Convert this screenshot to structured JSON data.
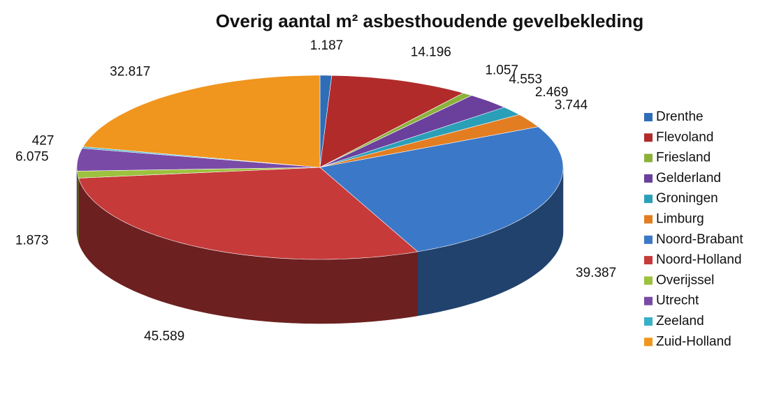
{
  "chart_data": {
    "type": "pie3d",
    "title": "Overig aantal m² asbesthoudende gevelbekleding",
    "categories": [
      "Drenthe",
      "Flevoland",
      "Friesland",
      "Gelderland",
      "Groningen",
      "Limburg",
      "Noord-Brabant",
      "Noord-Holland",
      "Overijssel",
      "Utrecht",
      "Zeeland",
      "Zuid-Holland"
    ],
    "values": [
      1187,
      14196,
      1057,
      4553,
      2469,
      3744,
      39387,
      45589,
      1873,
      6075,
      427,
      32817
    ],
    "value_labels": [
      "1.187",
      "14.196",
      "1.057",
      "4.553",
      "2.469",
      "3.744",
      "39.387",
      "45.589",
      "1.873",
      "6.075",
      "427",
      "32.817"
    ],
    "colors": [
      "#2f6db6",
      "#b12b2b",
      "#8bb13a",
      "#6b3f9c",
      "#2b9fb8",
      "#e27d22",
      "#3b78c7",
      "#c73a3a",
      "#9cc23e",
      "#7a4aa7",
      "#37b0c8",
      "#f0951e"
    ],
    "legend": "right"
  }
}
